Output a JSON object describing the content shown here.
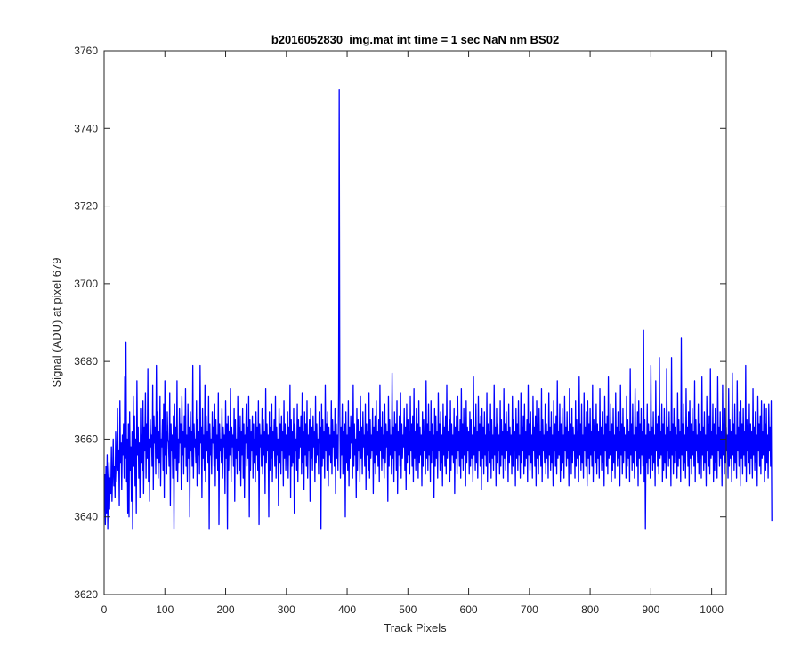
{
  "chart_data": {
    "type": "line",
    "title": "b2016052830_img.mat int time = 1 sec  NaN nm BS02",
    "xlabel": "Track Pixels",
    "ylabel": "Signal (ADU) at pixel 679",
    "xlim": [
      0,
      1024
    ],
    "ylim": [
      3620,
      3760
    ],
    "x_ticks": [
      0,
      100,
      200,
      300,
      400,
      500,
      600,
      700,
      800,
      900,
      1000
    ],
    "y_ticks": [
      3620,
      3640,
      3660,
      3680,
      3700,
      3720,
      3740,
      3760
    ],
    "grid": false,
    "line_color": "#0000ff",
    "axis_color": "#262626",
    "series": [
      {
        "x_start": 1,
        "x_step": 1,
        "values": [
          3651,
          3638,
          3653,
          3641,
          3656,
          3637,
          3649,
          3654,
          3642,
          3650,
          3646,
          3658,
          3644,
          3651,
          3660,
          3648,
          3653,
          3645,
          3662,
          3655,
          3649,
          3668,
          3652,
          3657,
          3643,
          3670,
          3654,
          3659,
          3647,
          3661,
          3656,
          3664,
          3650,
          3676,
          3655,
          3685,
          3649,
          3660,
          3641,
          3664,
          3640,
          3667,
          3652,
          3658,
          3644,
          3662,
          3637,
          3671,
          3653,
          3666,
          3648,
          3660,
          3641,
          3675,
          3656,
          3663,
          3650,
          3659,
          3645,
          3668,
          3654,
          3661,
          3652,
          3670,
          3646,
          3663,
          3657,
          3672,
          3650,
          3664,
          3655,
          3678,
          3649,
          3660,
          3644,
          3665,
          3658,
          3661,
          3653,
          3674,
          3647,
          3666,
          3659,
          3663,
          3651,
          3679,
          3655,
          3667,
          3650,
          3662,
          3654,
          3671,
          3648,
          3660,
          3658,
          3665,
          3652,
          3669,
          3645,
          3675,
          3656,
          3662,
          3651,
          3667,
          3660,
          3659,
          3653,
          3672,
          3643,
          3664,
          3657,
          3661,
          3650,
          3666,
          3637,
          3669,
          3655,
          3663,
          3652,
          3675,
          3649,
          3660,
          3654,
          3668,
          3659,
          3664,
          3647,
          3671,
          3656,
          3662,
          3651,
          3666,
          3658,
          3673,
          3653,
          3661,
          3649,
          3669,
          3655,
          3663,
          3640,
          3667,
          3657,
          3662,
          3653,
          3679,
          3650,
          3664,
          3658,
          3660,
          3654,
          3670,
          3648,
          3665,
          3656,
          3662,
          3651,
          3679,
          3659,
          3663,
          3645,
          3668,
          3655,
          3661,
          3652,
          3674,
          3649,
          3666,
          3657,
          3662,
          3654,
          3671,
          3637,
          3664,
          3656,
          3660,
          3651,
          3667,
          3659,
          3663,
          3653,
          3669,
          3648,
          3665,
          3655,
          3661,
          3652,
          3672,
          3638,
          3664,
          3657,
          3660,
          3654,
          3668,
          3650,
          3663,
          3658,
          3661,
          3646,
          3670,
          3655,
          3664,
          3637,
          3666,
          3652,
          3662,
          3656,
          3673,
          3649,
          3663,
          3658,
          3661,
          3653,
          3668,
          3644,
          3665,
          3655,
          3660,
          3651,
          3671,
          3657,
          3663,
          3652,
          3666,
          3648,
          3662,
          3656,
          3668,
          3650,
          3664,
          3645,
          3661,
          3659,
          3669,
          3653,
          3663,
          3655,
          3671,
          3640,
          3665,
          3652,
          3662,
          3657,
          3666,
          3650,
          3664,
          3654,
          3660,
          3649,
          3667,
          3656,
          3663,
          3652,
          3670,
          3638,
          3664,
          3658,
          3661,
          3653,
          3668,
          3651,
          3665,
          3656,
          3662,
          3646,
          3673,
          3654,
          3664,
          3657,
          3661,
          3640,
          3667,
          3652,
          3663,
          3655,
          3669,
          3649,
          3662,
          3657,
          3665,
          3653,
          3671,
          3650,
          3663,
          3656,
          3660,
          3643,
          3668,
          3654,
          3664,
          3651,
          3666,
          3657,
          3662,
          3648,
          3670,
          3655,
          3664,
          3652,
          3661,
          3658,
          3667,
          3650,
          3663,
          3656,
          3674,
          3645,
          3665,
          3653,
          3662,
          3654,
          3668,
          3641,
          3664,
          3657,
          3660,
          3652,
          3669,
          3649,
          3665,
          3655,
          3663,
          3658,
          3666,
          3651,
          3672,
          3654,
          3662,
          3647,
          3667,
          3656,
          3664,
          3653,
          3670,
          3650,
          3661,
          3657,
          3665,
          3644,
          3668,
          3655,
          3663,
          3652,
          3666,
          3658,
          3662,
          3649,
          3671,
          3654,
          3664,
          3656,
          3660,
          3651,
          3667,
          3659,
          3663,
          3637,
          3669,
          3653,
          3665,
          3655,
          3662,
          3650,
          3674,
          3657,
          3664,
          3652,
          3667,
          3648,
          3663,
          3656,
          3661,
          3654,
          3670,
          3651,
          3665,
          3658,
          3662,
          3653,
          3668,
          3646,
          3664,
          3655,
          3661,
          3652,
          3672,
          3750,
          3666,
          3650,
          3663,
          3656,
          3669,
          3651,
          3662,
          3657,
          3664,
          3640,
          3667,
          3654,
          3661,
          3652,
          3670,
          3648,
          3663,
          3655,
          3666,
          3659,
          3662,
          3650,
          3674,
          3653,
          3664,
          3656,
          3660,
          3645,
          3668,
          3652,
          3665,
          3657,
          3662,
          3649,
          3671,
          3655,
          3663,
          3651,
          3667,
          3658,
          3661,
          3653,
          3669,
          3647,
          3664,
          3656,
          3662,
          3652,
          3672,
          3650,
          3665,
          3655,
          3661,
          3657,
          3668,
          3646,
          3663,
          3654,
          3666,
          3651,
          3670,
          3656,
          3662,
          3653,
          3665,
          3649,
          3674,
          3657,
          3663,
          3652,
          3667,
          3655,
          3661,
          3650,
          3669,
          3654,
          3664,
          3658,
          3662,
          3644,
          3671,
          3653,
          3665,
          3656,
          3661,
          3651,
          3677,
          3655,
          3663,
          3649,
          3667,
          3657,
          3664,
          3652,
          3670,
          3646,
          3662,
          3656,
          3666,
          3653,
          3672,
          3650,
          3664,
          3655,
          3661,
          3658,
          3668,
          3652,
          3663,
          3647,
          3669,
          3654,
          3665,
          3656,
          3662,
          3651,
          3671,
          3657,
          3664,
          3653,
          3666,
          3649,
          3673,
          3655,
          3662,
          3652,
          3668,
          3658,
          3664,
          3650,
          3670,
          3654,
          3663,
          3656,
          3661,
          3648,
          3667,
          3653,
          3665,
          3657,
          3662,
          3651,
          3675,
          3655,
          3664,
          3652,
          3669,
          3656,
          3662,
          3649,
          3670,
          3654,
          3664,
          3657,
          3661,
          3645,
          3668,
          3653,
          3666,
          3655,
          3662,
          3650,
          3672,
          3657,
          3664,
          3652,
          3667,
          3654,
          3661,
          3648,
          3669,
          3656,
          3663,
          3653,
          3666,
          3651,
          3674,
          3655,
          3662,
          3657,
          3665,
          3649,
          3670,
          3652,
          3664,
          3656,
          3661,
          3654,
          3668,
          3646,
          3663,
          3655,
          3666,
          3651,
          3671,
          3657,
          3662,
          3653,
          3665,
          3650,
          3673,
          3655,
          3664,
          3652,
          3668,
          3656,
          3661,
          3648,
          3670,
          3654,
          3663,
          3657,
          3662,
          3651,
          3667,
          3653,
          3665,
          3655,
          3661,
          3649,
          3676,
          3656,
          3663,
          3652,
          3669,
          3654,
          3662,
          3650,
          3671,
          3657,
          3664,
          3653,
          3666,
          3647,
          3668,
          3655,
          3663,
          3651,
          3667,
          3656,
          3661,
          3653,
          3672,
          3649,
          3664,
          3657,
          3662,
          3654,
          3669,
          3650,
          3665,
          3655,
          3661,
          3652,
          3674,
          3656,
          3663,
          3648,
          3668,
          3654,
          3664,
          3657,
          3661,
          3651,
          3670,
          3653,
          3665,
          3656,
          3662,
          3650,
          3673,
          3655,
          3664,
          3652,
          3667,
          3657,
          3662,
          3649,
          3669,
          3654,
          3663,
          3656,
          3661,
          3651,
          3671,
          3653,
          3665,
          3657,
          3662,
          3648,
          3668,
          3655,
          3664,
          3652,
          3670,
          3656,
          3661,
          3650,
          3672,
          3654,
          3663,
          3657,
          3666,
          3651,
          3669,
          3653,
          3662,
          3655,
          3665,
          3649,
          3674,
          3656,
          3664,
          3652,
          3667,
          3654,
          3661,
          3650,
          3671,
          3657,
          3663,
          3653,
          3666,
          3648,
          3670,
          3655,
          3664,
          3651,
          3668,
          3656,
          3662,
          3653,
          3673,
          3649,
          3665,
          3657,
          3661,
          3654,
          3669,
          3651,
          3664,
          3655,
          3662,
          3650,
          3672,
          3656,
          3663,
          3652,
          3667,
          3654,
          3661,
          3648,
          3670,
          3657,
          3664,
          3653,
          3666,
          3651,
          3675,
          3655,
          3662,
          3656,
          3669,
          3649,
          3664,
          3652,
          3668,
          3654,
          3661,
          3650,
          3671,
          3657,
          3663,
          3653,
          3667,
          3655,
          3662,
          3648,
          3673,
          3656,
          3664,
          3651,
          3668,
          3654,
          3663,
          3657,
          3661,
          3650,
          3670,
          3653,
          3665,
          3655,
          3662,
          3649,
          3676,
          3656,
          3664,
          3652,
          3669,
          3654,
          3661,
          3650,
          3672,
          3657,
          3663,
          3653,
          3667,
          3648,
          3670,
          3655,
          3664,
          3651,
          3668,
          3656,
          3662,
          3653,
          3674,
          3649,
          3665,
          3657,
          3661,
          3654,
          3669,
          3651,
          3664,
          3655,
          3662,
          3650,
          3673,
          3656,
          3663,
          3652,
          3667,
          3654,
          3661,
          3648,
          3671,
          3657,
          3664,
          3653,
          3666,
          3651,
          3676,
          3655,
          3662,
          3656,
          3669,
          3649,
          3664,
          3652,
          3668,
          3654,
          3661,
          3650,
          3672,
          3657,
          3663,
          3653,
          3667,
          3655,
          3662,
          3648,
          3674,
          3656,
          3664,
          3651,
          3668,
          3654,
          3663,
          3657,
          3661,
          3650,
          3671,
          3653,
          3665,
          3655,
          3662,
          3649,
          3678,
          3656,
          3664,
          3652,
          3669,
          3654,
          3661,
          3650,
          3673,
          3657,
          3663,
          3653,
          3667,
          3648,
          3670,
          3655,
          3664,
          3651,
          3668,
          3656,
          3662,
          3653,
          3688,
          3649,
          3665,
          3637,
          3661,
          3654,
          3669,
          3651,
          3664,
          3655,
          3662,
          3650,
          3679,
          3656,
          3663,
          3652,
          3667,
          3654,
          3661,
          3648,
          3675,
          3657,
          3664,
          3653,
          3666,
          3651,
          3681,
          3655,
          3662,
          3656,
          3669,
          3649,
          3664,
          3652,
          3668,
          3654,
          3661,
          3650,
          3678,
          3657,
          3663,
          3653,
          3667,
          3655,
          3662,
          3648,
          3681,
          3656,
          3664,
          3651,
          3668,
          3654,
          3663,
          3657,
          3661,
          3650,
          3672,
          3653,
          3665,
          3655,
          3662,
          3649,
          3686,
          3656,
          3664,
          3652,
          3669,
          3654,
          3661,
          3650,
          3673,
          3657,
          3663,
          3653,
          3667,
          3648,
          3670,
          3655,
          3664,
          3651,
          3668,
          3656,
          3662,
          3653,
          3675,
          3649,
          3665,
          3657,
          3661,
          3654,
          3669,
          3651,
          3664,
          3655,
          3662,
          3650,
          3676,
          3656,
          3663,
          3652,
          3667,
          3654,
          3661,
          3648,
          3671,
          3657,
          3664,
          3653,
          3666,
          3651,
          3678,
          3655,
          3662,
          3656,
          3669,
          3649,
          3664,
          3652,
          3668,
          3654,
          3661,
          3650,
          3676,
          3657,
          3663,
          3653,
          3667,
          3655,
          3662,
          3648,
          3674,
          3656,
          3664,
          3651,
          3668,
          3654,
          3663,
          3657,
          3661,
          3650,
          3673,
          3653,
          3665,
          3655,
          3662,
          3649,
          3677,
          3656,
          3664,
          3652,
          3669,
          3654,
          3661,
          3650,
          3675,
          3657,
          3663,
          3653,
          3667,
          3648,
          3670,
          3655,
          3664,
          3651,
          3668,
          3656,
          3662,
          3653,
          3679,
          3649,
          3665,
          3657,
          3661,
          3654,
          3669,
          3651,
          3664,
          3655,
          3662,
          3650,
          3673,
          3656,
          3663,
          3652,
          3667,
          3654,
          3661,
          3648,
          3671,
          3657,
          3664,
          3653,
          3666,
          3651,
          3670,
          3655,
          3662,
          3656,
          3669,
          3649,
          3664,
          3652,
          3668,
          3654,
          3661,
          3650,
          3669,
          3657,
          3663,
          3653,
          3670,
          3639
        ]
      }
    ]
  }
}
